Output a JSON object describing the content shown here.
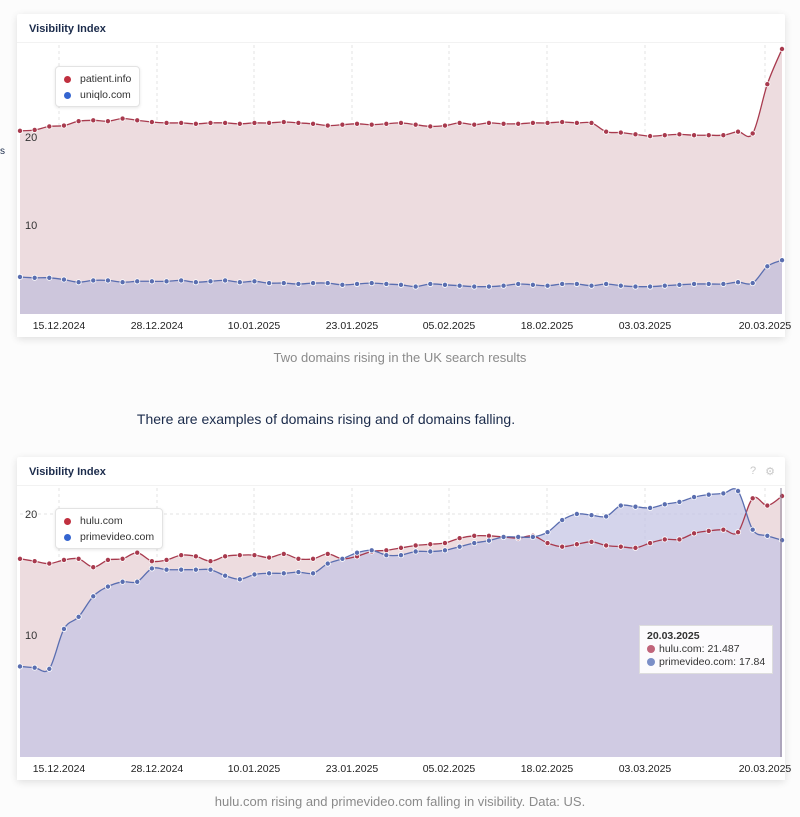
{
  "page": {
    "left_fragment": "s",
    "middle_text": "There are examples of domains rising and of domains falling."
  },
  "colors": {
    "red": "#a83a4e",
    "blue": "#5a6eb0",
    "red_fill": "#eddcdf",
    "blue_fill": "#cdc6da",
    "blue_light_fill": "#dce0f0",
    "title": "#1b2b4b"
  },
  "chart_data": [
    {
      "type": "area",
      "title": "Visibility Index",
      "caption": "Two domains rising in the UK search results",
      "xlabel": "",
      "ylabel": "",
      "ylim": [
        0,
        31
      ],
      "yticks": [
        "10",
        "20"
      ],
      "ytick_values": [
        10,
        20
      ],
      "x_tick_labels": [
        "15.12.2024",
        "28.12.2024",
        "10.01.2025",
        "23.01.2025",
        "05.02.2025",
        "18.02.2025",
        "03.03.2025",
        "20.03.2025"
      ],
      "grid": true,
      "legend": "top-left",
      "series": [
        {
          "name": "patient.info",
          "color": "#a83a4e",
          "values": [
            20.7,
            20.8,
            21.2,
            21.3,
            21.8,
            21.9,
            21.8,
            22.1,
            21.9,
            21.7,
            21.6,
            21.6,
            21.5,
            21.6,
            21.6,
            21.5,
            21.6,
            21.6,
            21.7,
            21.6,
            21.5,
            21.3,
            21.4,
            21.5,
            21.4,
            21.5,
            21.6,
            21.4,
            21.2,
            21.3,
            21.6,
            21.4,
            21.6,
            21.5,
            21.5,
            21.6,
            21.6,
            21.7,
            21.6,
            21.6,
            20.6,
            20.5,
            20.3,
            20.1,
            20.2,
            20.3,
            20.2,
            20.2,
            20.2,
            20.6,
            20.4,
            26.0,
            30.0
          ]
        },
        {
          "name": "uniqlo.com",
          "color": "#5a6eb0",
          "values": [
            4.1,
            4.0,
            4.0,
            3.8,
            3.5,
            3.7,
            3.7,
            3.5,
            3.6,
            3.6,
            3.6,
            3.7,
            3.5,
            3.6,
            3.7,
            3.5,
            3.6,
            3.4,
            3.4,
            3.3,
            3.4,
            3.4,
            3.2,
            3.3,
            3.4,
            3.3,
            3.2,
            3.0,
            3.3,
            3.2,
            3.1,
            3.0,
            3.0,
            3.1,
            3.3,
            3.2,
            3.1,
            3.3,
            3.3,
            3.1,
            3.3,
            3.1,
            3.0,
            3.0,
            3.1,
            3.2,
            3.3,
            3.3,
            3.3,
            3.5,
            3.4,
            5.3,
            6.0
          ]
        }
      ]
    },
    {
      "type": "area",
      "title": "Visibility Index",
      "caption": "hulu.com rising and primevideo.com falling in visibility. Data: US.",
      "xlabel": "",
      "ylabel": "",
      "ylim": [
        0,
        22.5
      ],
      "yticks": [
        "10",
        "20"
      ],
      "ytick_values": [
        10,
        20
      ],
      "x_tick_labels": [
        "15.12.2024",
        "28.12.2024",
        "10.01.2025",
        "23.01.2025",
        "05.02.2025",
        "18.02.2025",
        "03.03.2025",
        "20.03.2025"
      ],
      "grid": true,
      "legend": "top-left",
      "header_icons": [
        "help-icon",
        "gear-icon"
      ],
      "tooltip": {
        "date": "20.03.2025",
        "rows": [
          {
            "label": "hulu.com: 21.487",
            "color": "#c0647a"
          },
          {
            "label": "primevideo.com: 17.84",
            "color": "#7b8fc7"
          }
        ]
      },
      "series": [
        {
          "name": "hulu.com",
          "color": "#a83a4e",
          "values": [
            16.3,
            16.1,
            15.9,
            16.2,
            16.3,
            15.6,
            16.2,
            16.3,
            16.8,
            16.1,
            16.2,
            16.6,
            16.5,
            16.1,
            16.5,
            16.6,
            16.6,
            16.4,
            16.7,
            16.3,
            16.3,
            16.7,
            16.3,
            16.5,
            16.9,
            17.0,
            17.2,
            17.4,
            17.5,
            17.6,
            18.0,
            18.2,
            18.2,
            18.1,
            18.0,
            18.2,
            17.6,
            17.3,
            17.5,
            17.7,
            17.4,
            17.3,
            17.2,
            17.6,
            17.9,
            17.9,
            18.4,
            18.6,
            18.7,
            18.5,
            21.3,
            20.7,
            21.487
          ]
        },
        {
          "name": "primevideo.com",
          "color": "#5a6eb0",
          "values": [
            7.4,
            7.3,
            7.2,
            10.5,
            11.5,
            13.2,
            14.0,
            14.4,
            14.4,
            15.5,
            15.4,
            15.4,
            15.4,
            15.4,
            14.9,
            14.6,
            15.0,
            15.1,
            15.1,
            15.2,
            15.1,
            15.9,
            16.3,
            16.8,
            17.0,
            16.6,
            16.6,
            16.9,
            16.9,
            17.0,
            17.3,
            17.6,
            17.8,
            18.1,
            18.1,
            18.1,
            18.5,
            19.5,
            20.0,
            19.9,
            19.8,
            20.7,
            20.6,
            20.5,
            20.8,
            21.0,
            21.4,
            21.6,
            21.7,
            21.9,
            18.7,
            18.2,
            17.84
          ]
        }
      ]
    }
  ]
}
